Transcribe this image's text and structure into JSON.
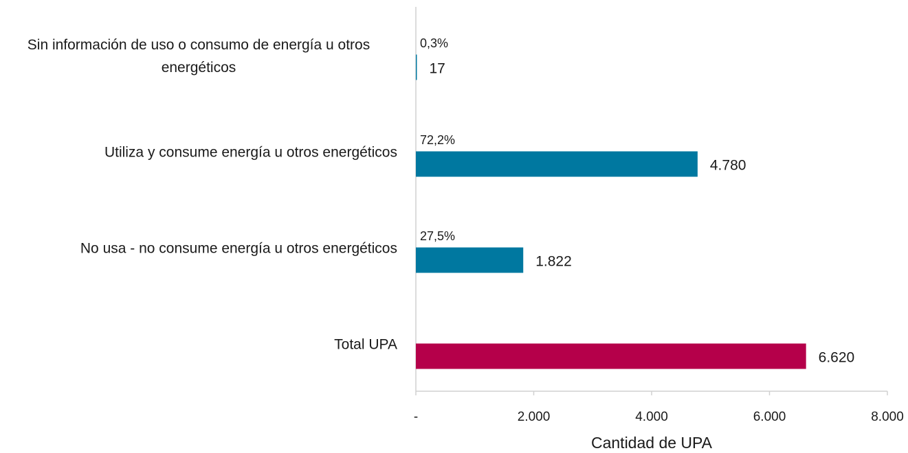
{
  "chart_data": {
    "type": "hbar",
    "categories": [
      "Sin información de uso o consumo de energía u otros energéticos",
      "Utiliza y consume energía u otros energéticos",
      "No usa - no consume energía u otros energéticos",
      "Total UPA"
    ],
    "values": [
      17,
      4780,
      1822,
      6620
    ],
    "value_labels": [
      "17",
      "4.780",
      "1.822",
      "6.620"
    ],
    "percent_values": [
      0.3,
      72.2,
      27.5,
      null
    ],
    "percent_labels": [
      "0,3%",
      "72,2%",
      "27,5%",
      null
    ],
    "colors": [
      "#0078a0",
      "#0078a0",
      "#0078a0",
      "#b5004a"
    ],
    "xlabel": "Cantidad de UPA",
    "xlim": [
      0,
      8000
    ],
    "xticks": [
      {
        "value": 0,
        "label": "-"
      },
      {
        "value": 2000,
        "label": "2.000"
      },
      {
        "value": 4000,
        "label": "4.000"
      },
      {
        "value": 6000,
        "label": "6.000"
      },
      {
        "value": 8000,
        "label": "8.000"
      }
    ]
  }
}
